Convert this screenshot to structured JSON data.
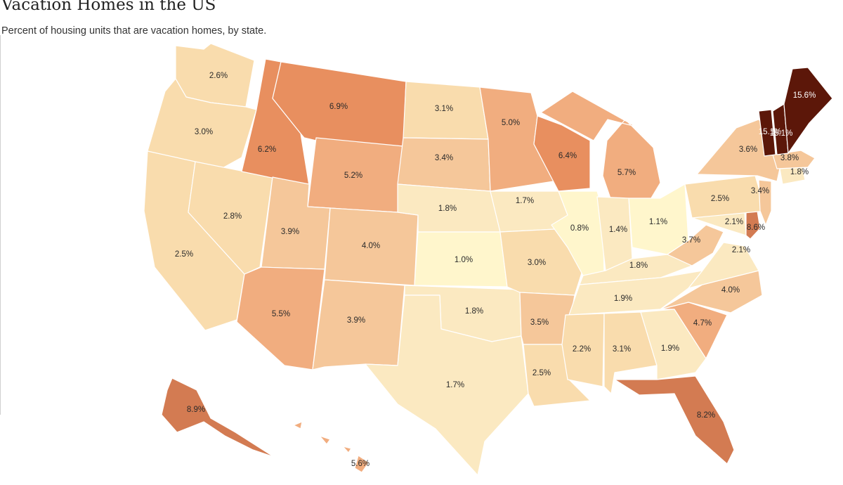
{
  "title": "Vacation Homes in the US",
  "subtitle": "Percent of housing units that are vacation homes, by state.",
  "color_scale": [
    "#fff6cc",
    "#fbe9c1",
    "#f9dcad",
    "#f5c79a",
    "#f1ad7f",
    "#e88f5f",
    "#d37b52",
    "#a55636",
    "#5c1709"
  ],
  "states": [
    {
      "abbr": "WA",
      "value": "2.6%"
    },
    {
      "abbr": "OR",
      "value": "3.0%"
    },
    {
      "abbr": "CA",
      "value": "2.5%"
    },
    {
      "abbr": "NV",
      "value": "2.8%"
    },
    {
      "abbr": "ID",
      "value": "6.2%"
    },
    {
      "abbr": "MT",
      "value": "6.9%"
    },
    {
      "abbr": "WY",
      "value": "5.2%"
    },
    {
      "abbr": "UT",
      "value": "3.9%"
    },
    {
      "abbr": "AZ",
      "value": "5.5%"
    },
    {
      "abbr": "CO",
      "value": "4.0%"
    },
    {
      "abbr": "NM",
      "value": "3.9%"
    },
    {
      "abbr": "ND",
      "value": "3.1%"
    },
    {
      "abbr": "SD",
      "value": "3.4%"
    },
    {
      "abbr": "NE",
      "value": "1.8%"
    },
    {
      "abbr": "KS",
      "value": "1.0%"
    },
    {
      "abbr": "OK",
      "value": "1.8%"
    },
    {
      "abbr": "TX",
      "value": "1.7%"
    },
    {
      "abbr": "MN",
      "value": "5.0%"
    },
    {
      "abbr": "IA",
      "value": "1.7%"
    },
    {
      "abbr": "MO",
      "value": "3.0%"
    },
    {
      "abbr": "AR",
      "value": "3.5%"
    },
    {
      "abbr": "LA",
      "value": "2.5%"
    },
    {
      "abbr": "WI",
      "value": "6.4%"
    },
    {
      "abbr": "IL",
      "value": "0.8%"
    },
    {
      "abbr": "MI",
      "value": "5.7%"
    },
    {
      "abbr": "IN",
      "value": "1.4%"
    },
    {
      "abbr": "OH",
      "value": "1.1%"
    },
    {
      "abbr": "KY",
      "value": "1.8%"
    },
    {
      "abbr": "TN",
      "value": "1.9%"
    },
    {
      "abbr": "MS",
      "value": "2.2%"
    },
    {
      "abbr": "AL",
      "value": "3.1%"
    },
    {
      "abbr": "GA",
      "value": "1.9%"
    },
    {
      "abbr": "FL",
      "value": "8.2%"
    },
    {
      "abbr": "SC",
      "value": "4.7%"
    },
    {
      "abbr": "NC",
      "value": "4.0%"
    },
    {
      "abbr": "VA",
      "value": "2.1%"
    },
    {
      "abbr": "WV",
      "value": "3.7%"
    },
    {
      "abbr": "MD",
      "value": "2.1%"
    },
    {
      "abbr": "DE",
      "value": "8.6%"
    },
    {
      "abbr": "PA",
      "value": "2.5%"
    },
    {
      "abbr": "NJ",
      "value": "3.4%"
    },
    {
      "abbr": "NY",
      "value": "3.6%"
    },
    {
      "abbr": "CT",
      "value": "1.8%"
    },
    {
      "abbr": "MA",
      "value": "3.8%"
    },
    {
      "abbr": "VT",
      "value": "15.1%"
    },
    {
      "abbr": "NH",
      "value": "15.1%"
    },
    {
      "abbr": "ME",
      "value": "15.6%"
    },
    {
      "abbr": "AK",
      "value": "8.9%"
    },
    {
      "abbr": "HI",
      "value": "5.6%"
    }
  ]
}
